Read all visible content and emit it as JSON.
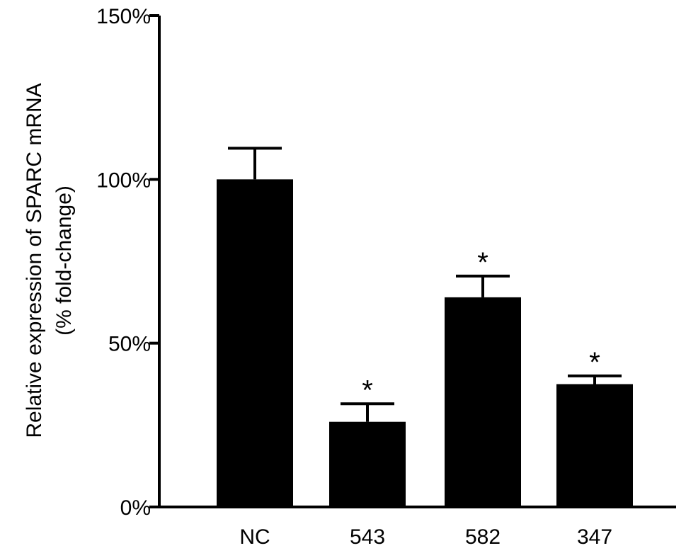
{
  "chart_data": {
    "type": "bar",
    "categories": [
      "NC",
      "543",
      "582",
      "347"
    ],
    "values": [
      100,
      26,
      64,
      37.5
    ],
    "errors": [
      9.5,
      5.5,
      6.5,
      2.5
    ],
    "significance": [
      "",
      "*",
      "*",
      "*"
    ],
    "ylim": [
      0,
      150
    ],
    "yticks": [
      0,
      50,
      100,
      150
    ],
    "ytick_labels": [
      "0%",
      "50%",
      "100%",
      "150%"
    ],
    "ylabel_lines": [
      "Relative expression of SPARC mRNA",
      "(% fold-change)"
    ],
    "xlabel": "",
    "title": "",
    "bar_color": "#000000",
    "grid": false,
    "legend": "none"
  }
}
